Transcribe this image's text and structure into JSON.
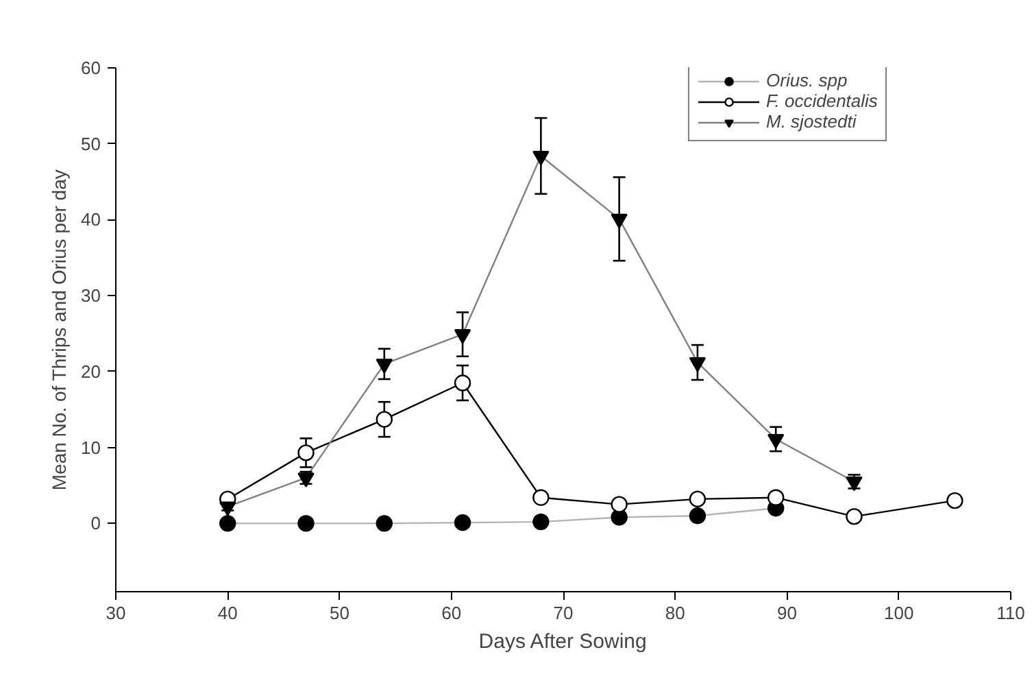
{
  "chart_data": {
    "type": "line",
    "xlabel": "Days After Sowing",
    "ylabel": "Mean No. of Thrips and Orius per day",
    "x": [
      40,
      47,
      54,
      61,
      68,
      75,
      82,
      89,
      96,
      105
    ],
    "series": [
      {
        "name": "Orius. spp",
        "color": "#b4b4b4",
        "marker": "circle",
        "values": [
          0,
          0,
          0,
          0.1,
          0.2,
          0.8,
          1.0,
          2.0,
          null,
          null
        ]
      },
      {
        "name": "F. occidentalis",
        "color": "#000000",
        "marker": "circle_open",
        "values": [
          3.2,
          9.3,
          13.7,
          18.5,
          3.4,
          2.5,
          3.2,
          3.4,
          0.9,
          3.0
        ],
        "errors": [
          0.5,
          1.9,
          2.3,
          2.3,
          0.6,
          0.5,
          0.5,
          0.5,
          null,
          0.5
        ]
      },
      {
        "name": "M. sjostedti",
        "color": "#808080",
        "marker": "triangle_down",
        "values": [
          2.2,
          6.0,
          21.0,
          24.9,
          48.4,
          40.1,
          21.2,
          11.1,
          5.5,
          null
        ],
        "errors": [
          0.5,
          0.8,
          2.0,
          2.9,
          5.0,
          5.5,
          2.3,
          1.6,
          0.9,
          null
        ]
      }
    ],
    "xlim": [
      30,
      110
    ],
    "xticks": [
      30,
      40,
      50,
      60,
      70,
      80,
      90,
      100,
      110
    ],
    "ylim": [
      -9,
      60
    ],
    "yticks": [
      0,
      10,
      20,
      30,
      40,
      50,
      60
    ],
    "grid": false,
    "legend": "top right"
  }
}
